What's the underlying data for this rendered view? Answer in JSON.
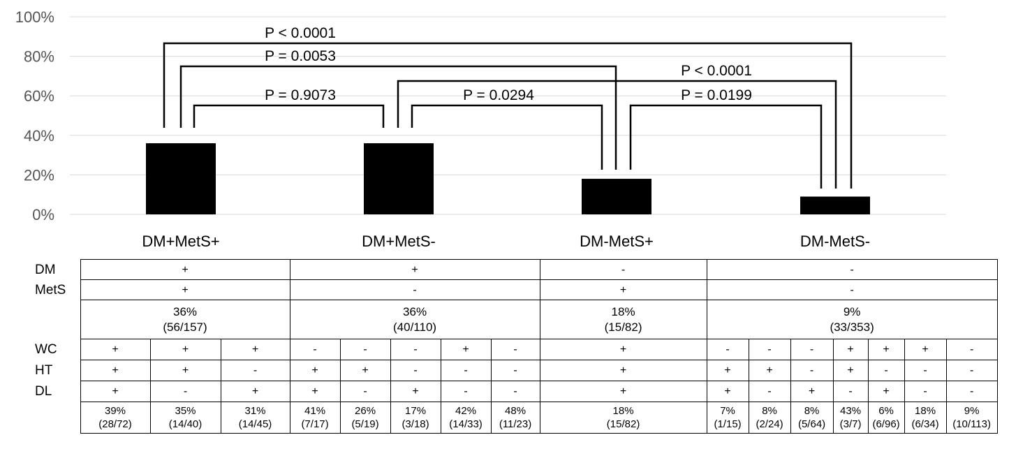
{
  "chart_data": {
    "type": "bar",
    "categories": [
      "DM+MetS+",
      "DM+MetS-",
      "DM-MetS+",
      "DM-MetS-"
    ],
    "values": [
      36,
      36,
      18,
      9
    ],
    "ylim": [
      0,
      100
    ],
    "yticks": [
      "0%",
      "20%",
      "40%",
      "60%",
      "80%",
      "100%"
    ],
    "ytick_values": [
      0,
      20,
      40,
      60,
      80,
      100
    ],
    "grid": true,
    "bar_color": "#000000",
    "comparisons": [
      {
        "from": 0,
        "to": 1,
        "label": "P = 0.9073"
      },
      {
        "from": 0,
        "to": 2,
        "label": "P = 0.0053"
      },
      {
        "from": 0,
        "to": 3,
        "label": "P < 0.0001"
      },
      {
        "from": 1,
        "to": 2,
        "label": "P = 0.0294"
      },
      {
        "from": 1,
        "to": 3,
        "label": "P < 0.0001"
      },
      {
        "from": 2,
        "to": 3,
        "label": "P = 0.0199"
      }
    ]
  },
  "table": {
    "row_labels": {
      "dm": "DM",
      "mets": "MetS",
      "wc": "WC",
      "ht": "HT",
      "dl": "DL"
    },
    "groups": [
      {
        "dm": "+",
        "mets": "+",
        "pct": "36%",
        "frac": "(56/157)",
        "subs": [
          {
            "wc": "+",
            "ht": "+",
            "dl": "+",
            "pct": "39%",
            "frac": "(28/72)"
          },
          {
            "wc": "+",
            "ht": "+",
            "dl": "-",
            "pct": "35%",
            "frac": "(14/40)"
          },
          {
            "wc": "+",
            "ht": "-",
            "dl": "+",
            "pct": "31%",
            "frac": "(14/45)"
          }
        ]
      },
      {
        "dm": "+",
        "mets": "-",
        "pct": "36%",
        "frac": "(40/110)",
        "subs": [
          {
            "wc": "-",
            "ht": "+",
            "dl": "+",
            "pct": "41%",
            "frac": "(7/17)"
          },
          {
            "wc": "-",
            "ht": "+",
            "dl": "-",
            "pct": "26%",
            "frac": "(5/19)"
          },
          {
            "wc": "-",
            "ht": "-",
            "dl": "+",
            "pct": "17%",
            "frac": "(3/18)"
          },
          {
            "wc": "+",
            "ht": "-",
            "dl": "-",
            "pct": "42%",
            "frac": "(14/33)"
          },
          {
            "wc": "-",
            "ht": "-",
            "dl": "-",
            "pct": "48%",
            "frac": "(11/23)"
          }
        ]
      },
      {
        "dm": "-",
        "mets": "+",
        "pct": "18%",
        "frac": "(15/82)",
        "subs": [
          {
            "wc": "+",
            "ht": "+",
            "dl": "+",
            "pct": "18%",
            "frac": "(15/82)"
          }
        ]
      },
      {
        "dm": "-",
        "mets": "-",
        "pct": "9%",
        "frac": "(33/353)",
        "subs": [
          {
            "wc": "-",
            "ht": "+",
            "dl": "+",
            "pct": "7%",
            "frac": "(1/15)"
          },
          {
            "wc": "-",
            "ht": "+",
            "dl": "-",
            "pct": "8%",
            "frac": "(2/24)"
          },
          {
            "wc": "-",
            "ht": "-",
            "dl": "+",
            "pct": "8%",
            "frac": "(5/64)"
          },
          {
            "wc": "+",
            "ht": "+",
            "dl": "-",
            "pct": "43%",
            "frac": "(3/7)"
          },
          {
            "wc": "+",
            "ht": "-",
            "dl": "+",
            "pct": "6%",
            "frac": "(6/96)"
          },
          {
            "wc": "+",
            "ht": "-",
            "dl": "-",
            "pct": "18%",
            "frac": "(6/34)"
          },
          {
            "wc": "-",
            "ht": "-",
            "dl": "-",
            "pct": "9%",
            "frac": "(10/113)"
          }
        ]
      }
    ]
  }
}
